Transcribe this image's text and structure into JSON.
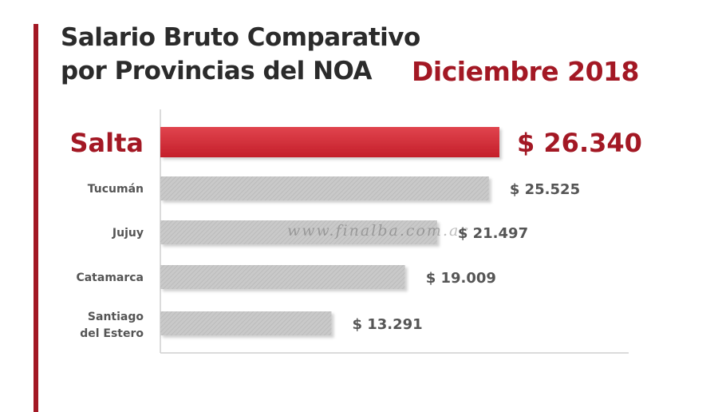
{
  "header": {
    "title_line1": "Salario Bruto Comparativo",
    "title_line2": "por Provincias del NOA",
    "date": "Diciembre 2018"
  },
  "watermark": "www.finalba.com.ar",
  "colors": {
    "highlight": "#c8202c",
    "bar": "#c4c4c4",
    "label_highlight": "#a31824",
    "label": "#555555"
  },
  "chart_data": {
    "type": "bar",
    "orientation": "horizontal",
    "title": "Salario Bruto Comparativo por Provincias del NOA",
    "subtitle": "Diciembre 2018",
    "categories": [
      "Salta",
      "Tucumán",
      "Jujuy",
      "Catamarca",
      "Santiago del Estero"
    ],
    "values": [
      26340,
      25525,
      21497,
      19009,
      13291
    ],
    "value_labels": [
      "$ 26.340",
      "$ 25.525",
      "$ 21.497",
      "$ 19.009",
      "$ 13.291"
    ],
    "highlight_index": 0,
    "xlim": [
      0,
      26340
    ],
    "grid": false,
    "legend": "none"
  }
}
